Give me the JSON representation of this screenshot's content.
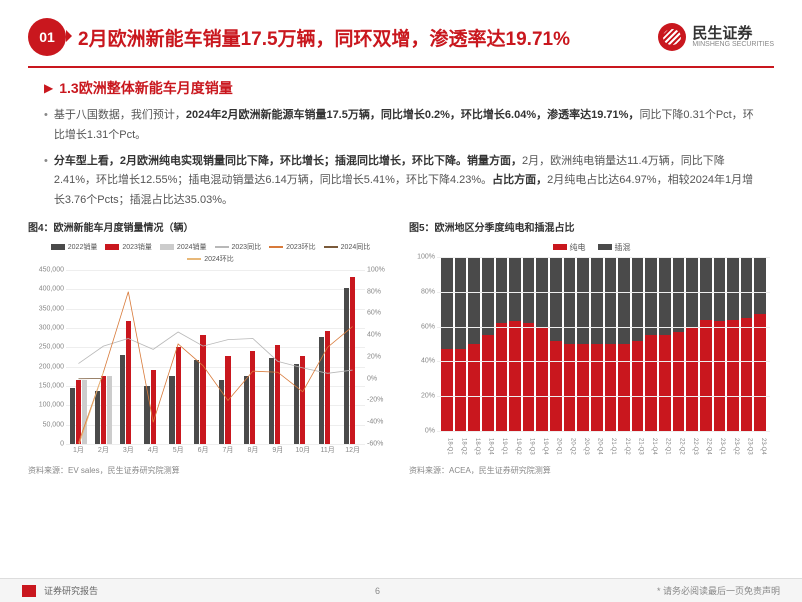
{
  "colors": {
    "brand_red": "#c9171e",
    "dark_gray": "#4a4a4a",
    "light_gray": "#b8b8b8",
    "orange": "#d87a3a",
    "text": "#555555",
    "grid": "#eeeeee"
  },
  "header": {
    "badge": "01",
    "title": "2月欧洲新能车销量17.5万辆，同环双增，渗透率达19.71%",
    "company": "民生证券",
    "company_en": "MINSHENG SECURITIES"
  },
  "section": {
    "title": "1.3欧洲整体新能车月度销量"
  },
  "bullets": [
    {
      "prefix": "基于八国数据，我们预计，",
      "bold": "2024年2月欧洲新能源车销量17.5万辆，同比增长0.2%，环比增长6.04%，渗透率达19.71%，",
      "suffix": "同比下降0.31个Pct，环比增长1.31个Pct。"
    },
    {
      "prefix": "",
      "bold": "分车型上看，2月欧洲纯电实现销量同比下降，环比增长；插混同比增长，环比下降。销量方面，",
      "suffix": "2月，欧洲纯电销量达11.4万辆，同比下降2.41%，环比增长12.55%；插电混动销量达6.14万辆，同比增长5.41%，环比下降4.23%。",
      "bold2": "占比方面，",
      "suffix2": "2月纯电占比达64.97%，相较2024年1月增长3.76个Pcts；插混占比达35.03%。"
    }
  ],
  "chart1": {
    "title": "图4：欧洲新能车月度销量情况（辆）",
    "type": "grouped_bar_with_lines",
    "source": "资料来源：EV sales，民生证券研究院测算",
    "legend": [
      {
        "label": "2022销量",
        "type": "bar",
        "color": "#4a4a4a"
      },
      {
        "label": "2023销量",
        "type": "bar",
        "color": "#c9171e"
      },
      {
        "label": "2024销量",
        "type": "bar",
        "color": "#cccccc"
      },
      {
        "label": "2023同比",
        "type": "line",
        "color": "#b8b8b8"
      },
      {
        "label": "2023环比",
        "type": "line",
        "color": "#d87a3a"
      },
      {
        "label": "2024同比",
        "type": "line",
        "color": "#7a5a3a"
      },
      {
        "label": "2024环比",
        "type": "line",
        "color": "#e8b878"
      }
    ],
    "x_categories": [
      "1月",
      "2月",
      "3月",
      "4月",
      "5月",
      "6月",
      "7月",
      "8月",
      "9月",
      "10月",
      "11月",
      "12月"
    ],
    "y_left": {
      "min": 0,
      "max": 450000,
      "step": 50000
    },
    "y_right": {
      "min": -60,
      "max": 100,
      "step": 20,
      "suffix": "%"
    },
    "bars_2022": [
      145000,
      135000,
      230000,
      150000,
      175000,
      215000,
      165000,
      175000,
      220000,
      205000,
      275000,
      400000
    ],
    "bars_2023": [
      165000,
      175000,
      315000,
      190000,
      250000,
      280000,
      225000,
      240000,
      255000,
      225000,
      290000,
      430000
    ],
    "bars_2024": [
      165000,
      175000,
      null,
      null,
      null,
      null,
      null,
      null,
      null,
      null,
      null,
      null
    ],
    "line_2023_yoy": [
      14,
      30,
      37,
      27,
      43,
      30,
      36,
      37,
      16,
      10,
      5,
      8
    ],
    "line_2023_mom": [
      -59,
      6,
      80,
      -40,
      32,
      12,
      -20,
      7,
      6,
      -12,
      29,
      48
    ],
    "line_2024_yoy": [
      0,
      0.2,
      null,
      null,
      null,
      null,
      null,
      null,
      null,
      null,
      null,
      null
    ],
    "line_2024_mom": [
      -62,
      6,
      null,
      null,
      null,
      null,
      null,
      null,
      null,
      null,
      null,
      null
    ]
  },
  "chart2": {
    "title": "图5：欧洲地区分季度纯电和插混占比",
    "type": "stacked_bar",
    "source": "资料来源：ACEA，民生证券研究院测算",
    "legend": [
      {
        "label": "纯电",
        "color": "#c9171e"
      },
      {
        "label": "插混",
        "color": "#4a4a4a"
      }
    ],
    "x_categories": [
      "18-Q1",
      "18-Q2",
      "18-Q3",
      "18-Q4",
      "19-Q1",
      "19-Q2",
      "19-Q3",
      "19-Q4",
      "20-Q1",
      "20-Q2",
      "20-Q3",
      "20-Q4",
      "21-Q1",
      "21-Q2",
      "21-Q3",
      "21-Q4",
      "22-Q1",
      "22-Q2",
      "22-Q3",
      "22-Q4",
      "23-Q1",
      "23-Q2",
      "23-Q3",
      "23-Q4"
    ],
    "y": {
      "min": 0,
      "max": 100,
      "step": 20,
      "suffix": "%"
    },
    "pure_ev_pct": [
      47,
      47,
      50,
      55,
      62,
      63,
      62,
      60,
      52,
      50,
      50,
      50,
      50,
      50,
      52,
      55,
      55,
      57,
      60,
      64,
      63,
      64,
      65,
      67
    ],
    "phev_pct": [
      53,
      53,
      50,
      45,
      38,
      37,
      38,
      40,
      48,
      50,
      50,
      50,
      50,
      50,
      48,
      45,
      45,
      43,
      40,
      36,
      37,
      36,
      35,
      33
    ]
  },
  "footer": {
    "report_label": "证券研究报告",
    "page": "6",
    "disclaimer": "* 请务必阅读最后一页免责声明"
  }
}
